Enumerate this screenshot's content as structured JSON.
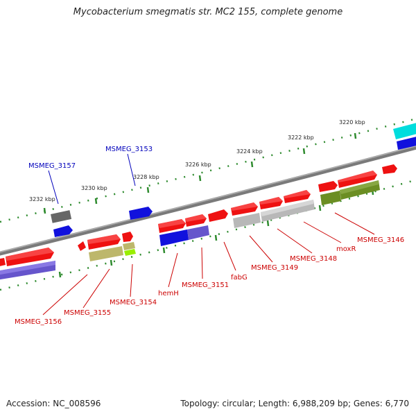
{
  "title": "Mycobacterium smegmatis str. MC2 155, complete genome",
  "footer": {
    "accession": "Accession: NC_008596",
    "topology": "Topology: circular; Length: 6,988,209 bp; Genes: 6,770"
  },
  "colors": {
    "backbone": "#7a7a7a",
    "tick": "#2e8b2e",
    "label_red": "#cc0000",
    "label_blue": "#0000bb",
    "feature_red": "#ee1111",
    "feature_blue": "#1111dd",
    "feature_purple": "#6655cc",
    "feature_gray": "#b8b8b8",
    "feature_darkgray": "#666666",
    "feature_olive": "#6b8e23",
    "feature_khaki": "#bdb76b",
    "feature_lime": "#99ee00",
    "feature_cyan": "#00dddd"
  },
  "kbp_labels": [
    "3220 kbp",
    "3222 kbp",
    "3224 kbp",
    "3226 kbp",
    "3228 kbp",
    "3230 kbp",
    "3232 kbp"
  ],
  "gene_labels_top": [
    "MSMEG_3157",
    "MSMEG_3153"
  ],
  "gene_labels_bottom": [
    "MSMEG_3156",
    "MSMEG_3155",
    "MSMEG_3154",
    "hemH",
    "MSMEG_3151",
    "fabG",
    "MSMEG_3149",
    "MSMEG_3148",
    "moxR",
    "MSMEG_3146"
  ]
}
